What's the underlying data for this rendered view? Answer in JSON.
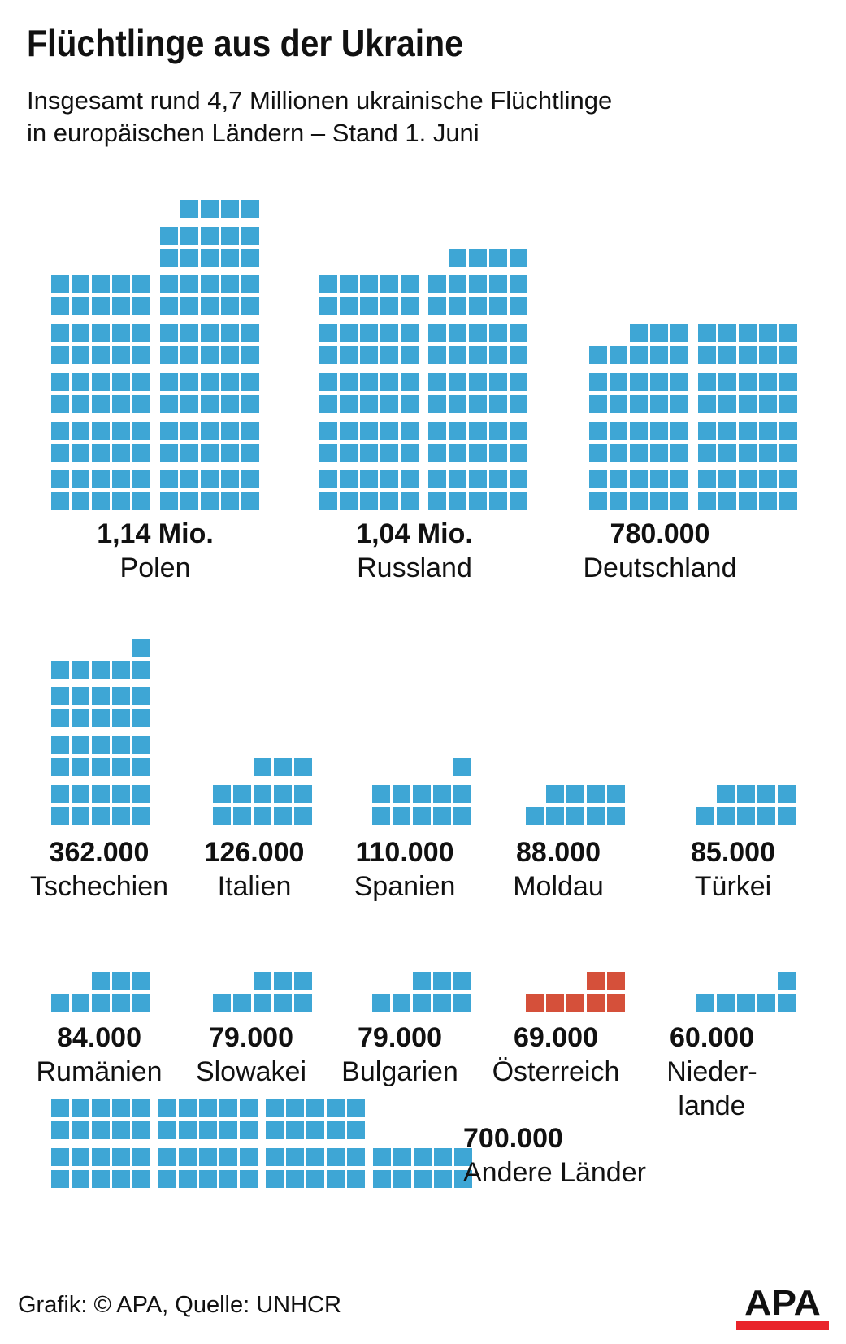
{
  "header": {
    "title": "Flüchtlinge aus der Ukraine",
    "subtitle_line1": "Insgesamt rund 4,7 Millionen ukrainische Flüchtlinge",
    "subtitle_line2": "in europäischen Ländern – Stand 1. Juni"
  },
  "chart_data": {
    "type": "pictogram",
    "unit_per_square": 10000,
    "colors": {
      "square_blue": "#3ea6d5",
      "square_red": "#d5503a",
      "text": "#111111",
      "logo_red": "#e9242b"
    },
    "countries": [
      {
        "name": "Polen",
        "value_label": "1,14 Mio.",
        "value": 1140000,
        "squares": 114,
        "color": "blue",
        "groups": [
          [
            5,
            5,
            5,
            5,
            5,
            5,
            5,
            5,
            5,
            5
          ],
          [
            4,
            5,
            5,
            5,
            5,
            5,
            5,
            5,
            5,
            5,
            5,
            5,
            5
          ]
        ]
      },
      {
        "name": "Russland",
        "value_label": "1,04 Mio.",
        "value": 1040000,
        "squares": 104,
        "color": "blue",
        "groups": [
          [
            5,
            5,
            5,
            5,
            5,
            5,
            5,
            5,
            5,
            5
          ],
          [
            4,
            5,
            5,
            5,
            5,
            5,
            5,
            5,
            5,
            5,
            5
          ]
        ]
      },
      {
        "name": "Deutschland",
        "value_label": "780.000",
        "value": 780000,
        "squares": 78,
        "color": "blue",
        "groups": [
          [
            3,
            5,
            5,
            5,
            5,
            5,
            5,
            5
          ],
          [
            5,
            5,
            5,
            5,
            5,
            5,
            5,
            5
          ]
        ]
      },
      {
        "name": "Tschechien",
        "value_label": "362.000",
        "value": 362000,
        "squares": 36,
        "color": "blue",
        "groups": [
          [
            1,
            5,
            5,
            5,
            5,
            5,
            5,
            5
          ]
        ]
      },
      {
        "name": "Italien",
        "value_label": "126.000",
        "value": 126000,
        "squares": 13,
        "color": "blue",
        "groups": [
          [
            3,
            5,
            5
          ]
        ]
      },
      {
        "name": "Spanien",
        "value_label": "110.000",
        "value": 110000,
        "squares": 11,
        "color": "blue",
        "groups": [
          [
            1,
            5,
            5
          ]
        ]
      },
      {
        "name": "Moldau",
        "value_label": "88.000",
        "value": 88000,
        "squares": 9,
        "color": "blue",
        "groups": [
          [
            4,
            5
          ]
        ]
      },
      {
        "name": "Türkei",
        "value_label": "85.000",
        "value": 85000,
        "squares": 9,
        "color": "blue",
        "groups": [
          [
            4,
            5
          ]
        ]
      },
      {
        "name": "Rumänien",
        "value_label": "84.000",
        "value": 84000,
        "squares": 8,
        "color": "blue",
        "groups": [
          [
            3,
            5
          ]
        ]
      },
      {
        "name": "Slowakei",
        "value_label": "79.000",
        "value": 79000,
        "squares": 8,
        "color": "blue",
        "groups": [
          [
            3,
            5
          ]
        ]
      },
      {
        "name": "Bulgarien",
        "value_label": "79.000",
        "value": 79000,
        "squares": 8,
        "color": "blue",
        "groups": [
          [
            3,
            5
          ]
        ]
      },
      {
        "name": "Österreich",
        "value_label": "69.000",
        "value": 69000,
        "squares": 7,
        "color": "red",
        "groups": [
          [
            2,
            5
          ]
        ]
      },
      {
        "name": "Niederlande",
        "value_label": "60.000",
        "value": 60000,
        "squares": 6,
        "color": "blue",
        "name_lines": [
          "Nieder-",
          "lande"
        ],
        "groups": [
          [
            1,
            5
          ]
        ]
      },
      {
        "name": "Andere Länder",
        "value_label": "700.000",
        "value": 700000,
        "squares": 70,
        "color": "blue",
        "groups": [
          [
            5,
            5,
            5,
            5
          ],
          [
            5,
            5,
            5,
            5
          ],
          [
            5,
            5,
            5,
            5
          ],
          [
            5,
            5
          ]
        ]
      }
    ]
  },
  "footer": {
    "credit": "Grafik: © APA, Quelle: UNHCR",
    "logo_text": "APA"
  }
}
